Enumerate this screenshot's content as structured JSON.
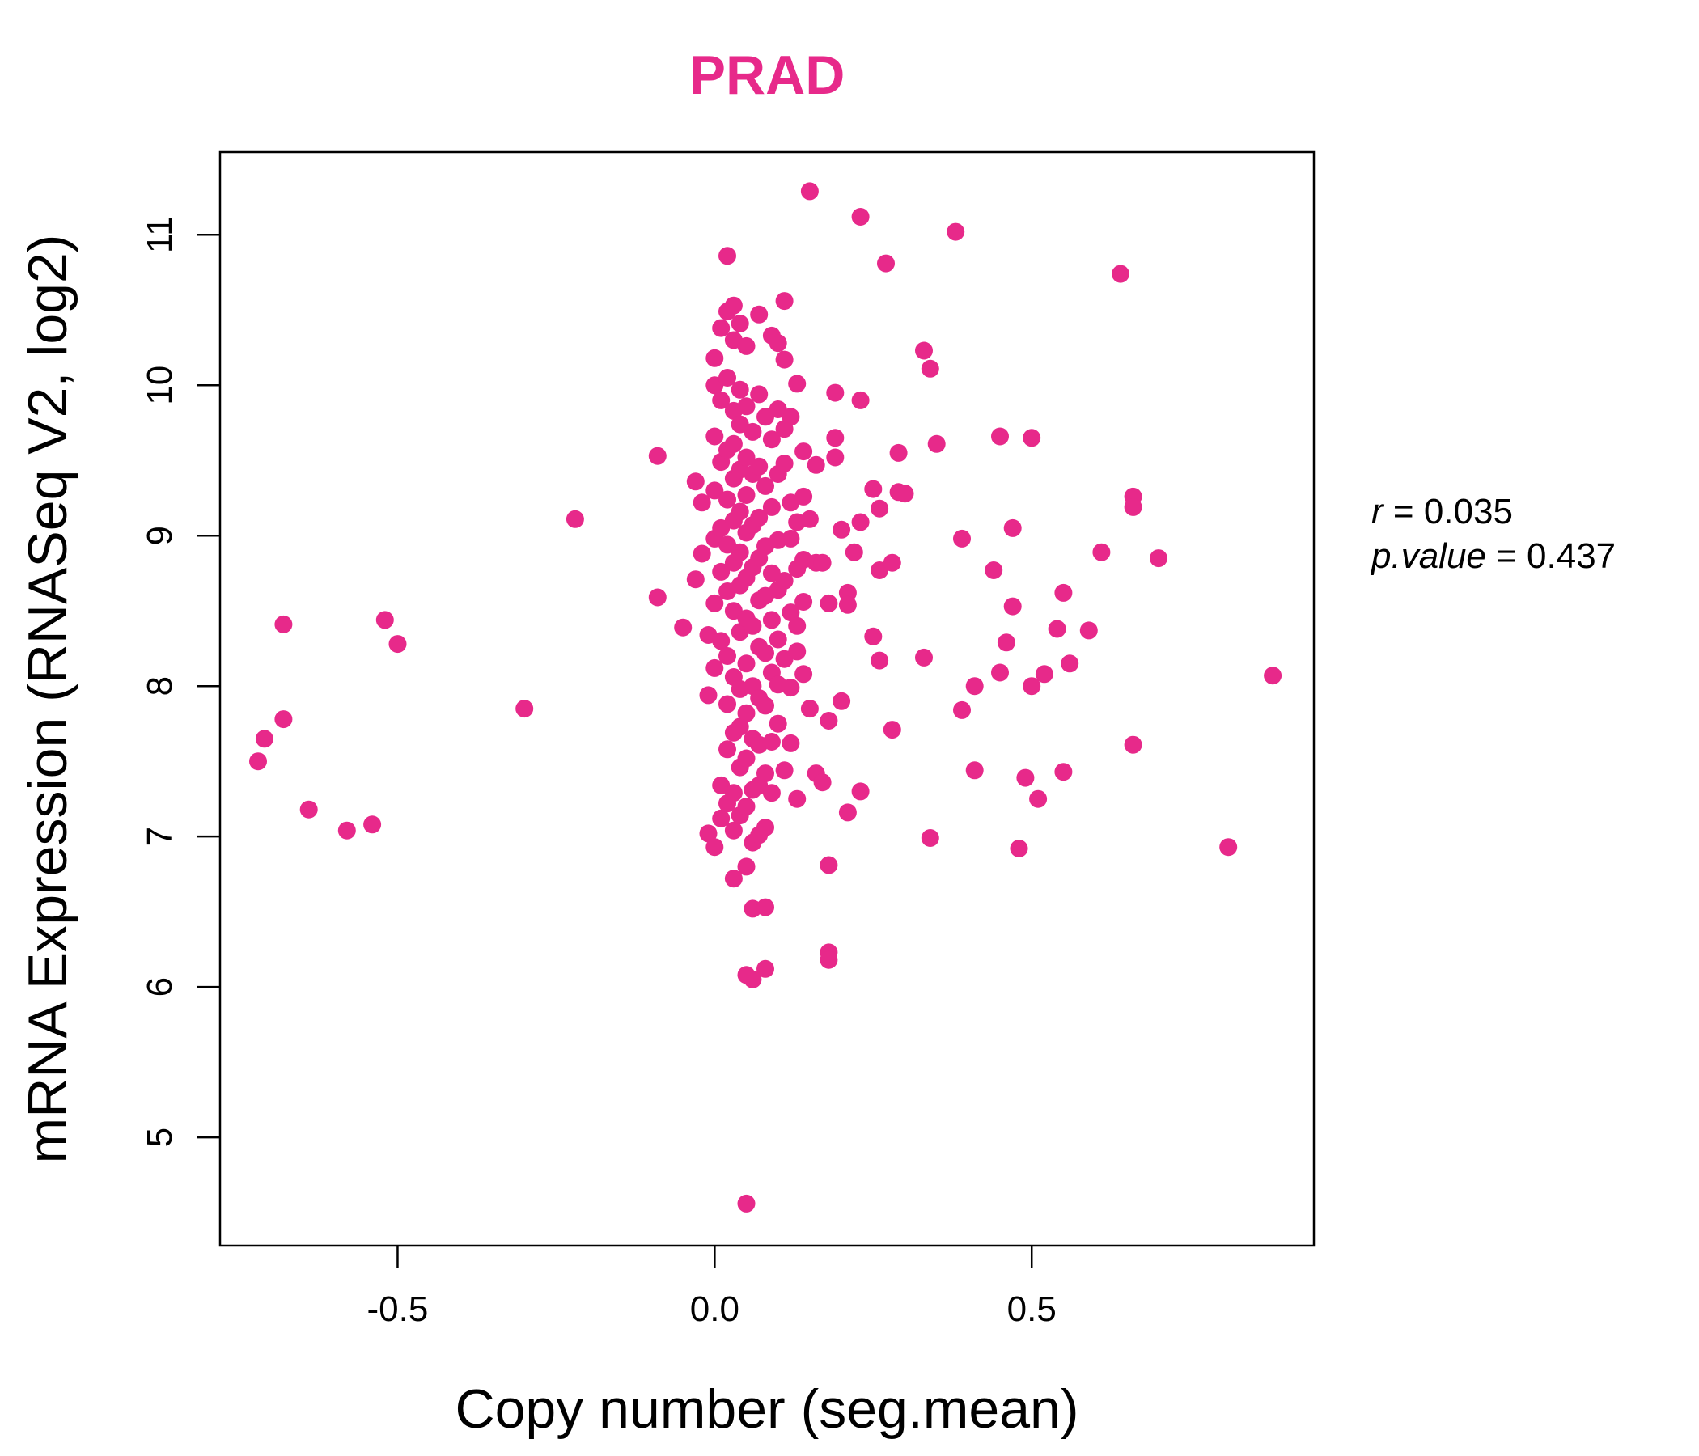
{
  "chart_data": {
    "type": "scatter",
    "title": "PRAD",
    "xlabel": "Copy number (seg.mean)",
    "ylabel": "mRNA Expression (RNASeq V2, log2)",
    "xlim": [
      -0.78,
      0.945
    ],
    "ylim": [
      4.28,
      11.55
    ],
    "xticks": [
      -0.5,
      0.0,
      0.5
    ],
    "xtick_labels": [
      "-0.5",
      "0.0",
      "0.5"
    ],
    "yticks": [
      5,
      6,
      7,
      8,
      9,
      10,
      11
    ],
    "ytick_labels": [
      "5",
      "6",
      "7",
      "8",
      "9",
      "10",
      "11"
    ],
    "grid": false,
    "legend": "none",
    "colors": {
      "points": "#e7298a",
      "title": "#e7298a",
      "axis": "#000000"
    },
    "stats": {
      "r_label": "r",
      "r_value": "0.035",
      "p_label": "p.value",
      "p_value": "0.437"
    },
    "points": [
      [
        -0.72,
        7.5
      ],
      [
        -0.71,
        7.65
      ],
      [
        -0.68,
        8.41
      ],
      [
        -0.68,
        7.78
      ],
      [
        -0.64,
        7.18
      ],
      [
        -0.58,
        7.04
      ],
      [
        -0.54,
        7.08
      ],
      [
        -0.52,
        8.44
      ],
      [
        -0.5,
        8.28
      ],
      [
        -0.3,
        7.85
      ],
      [
        -0.22,
        9.11
      ],
      [
        -0.09,
        9.53
      ],
      [
        -0.09,
        8.59
      ],
      [
        -0.05,
        8.39
      ],
      [
        -0.03,
        9.36
      ],
      [
        -0.03,
        8.71
      ],
      [
        -0.02,
        9.22
      ],
      [
        -0.02,
        8.88
      ],
      [
        -0.01,
        8.34
      ],
      [
        -0.01,
        7.94
      ],
      [
        -0.01,
        7.02
      ],
      [
        0.0,
        10.18
      ],
      [
        0.0,
        10.0
      ],
      [
        0.0,
        9.66
      ],
      [
        0.0,
        9.3
      ],
      [
        0.0,
        8.98
      ],
      [
        0.0,
        8.55
      ],
      [
        0.0,
        8.12
      ],
      [
        0.0,
        6.93
      ],
      [
        0.01,
        10.38
      ],
      [
        0.01,
        9.9
      ],
      [
        0.01,
        9.49
      ],
      [
        0.01,
        9.05
      ],
      [
        0.01,
        8.76
      ],
      [
        0.01,
        8.3
      ],
      [
        0.01,
        7.34
      ],
      [
        0.01,
        7.12
      ],
      [
        0.02,
        10.86
      ],
      [
        0.02,
        10.49
      ],
      [
        0.02,
        10.05
      ],
      [
        0.02,
        9.57
      ],
      [
        0.02,
        9.24
      ],
      [
        0.02,
        8.94
      ],
      [
        0.02,
        8.63
      ],
      [
        0.02,
        8.2
      ],
      [
        0.02,
        7.88
      ],
      [
        0.02,
        7.58
      ],
      [
        0.02,
        7.22
      ],
      [
        0.03,
        10.53
      ],
      [
        0.03,
        10.3
      ],
      [
        0.03,
        9.83
      ],
      [
        0.03,
        9.61
      ],
      [
        0.03,
        9.38
      ],
      [
        0.03,
        9.1
      ],
      [
        0.03,
        8.82
      ],
      [
        0.03,
        8.5
      ],
      [
        0.03,
        8.06
      ],
      [
        0.03,
        7.69
      ],
      [
        0.03,
        7.29
      ],
      [
        0.03,
        7.04
      ],
      [
        0.03,
        6.72
      ],
      [
        0.04,
        10.41
      ],
      [
        0.04,
        9.97
      ],
      [
        0.04,
        9.74
      ],
      [
        0.04,
        9.44
      ],
      [
        0.04,
        9.16
      ],
      [
        0.04,
        8.89
      ],
      [
        0.04,
        8.67
      ],
      [
        0.04,
        8.36
      ],
      [
        0.04,
        7.98
      ],
      [
        0.04,
        7.73
      ],
      [
        0.04,
        7.46
      ],
      [
        0.04,
        7.14
      ],
      [
        0.05,
        10.26
      ],
      [
        0.05,
        9.86
      ],
      [
        0.05,
        9.52
      ],
      [
        0.05,
        9.27
      ],
      [
        0.05,
        9.02
      ],
      [
        0.05,
        8.72
      ],
      [
        0.05,
        8.45
      ],
      [
        0.05,
        8.15
      ],
      [
        0.05,
        7.82
      ],
      [
        0.05,
        7.52
      ],
      [
        0.05,
        7.2
      ],
      [
        0.05,
        6.8
      ],
      [
        0.05,
        6.08
      ],
      [
        0.05,
        4.56
      ],
      [
        0.06,
        9.69
      ],
      [
        0.06,
        9.41
      ],
      [
        0.06,
        9.07
      ],
      [
        0.06,
        8.79
      ],
      [
        0.06,
        8.4
      ],
      [
        0.06,
        8.0
      ],
      [
        0.06,
        7.65
      ],
      [
        0.06,
        7.31
      ],
      [
        0.06,
        6.96
      ],
      [
        0.06,
        6.52
      ],
      [
        0.06,
        6.05
      ],
      [
        0.07,
        10.47
      ],
      [
        0.07,
        9.94
      ],
      [
        0.07,
        9.46
      ],
      [
        0.07,
        9.12
      ],
      [
        0.07,
        8.85
      ],
      [
        0.07,
        8.57
      ],
      [
        0.07,
        8.26
      ],
      [
        0.07,
        7.92
      ],
      [
        0.07,
        7.61
      ],
      [
        0.07,
        7.34
      ],
      [
        0.07,
        7.01
      ],
      [
        0.08,
        9.79
      ],
      [
        0.08,
        9.33
      ],
      [
        0.08,
        8.93
      ],
      [
        0.08,
        8.6
      ],
      [
        0.08,
        8.22
      ],
      [
        0.08,
        7.87
      ],
      [
        0.08,
        7.42
      ],
      [
        0.08,
        7.06
      ],
      [
        0.08,
        6.53
      ],
      [
        0.08,
        6.12
      ],
      [
        0.09,
        10.33
      ],
      [
        0.09,
        9.64
      ],
      [
        0.09,
        9.19
      ],
      [
        0.09,
        8.75
      ],
      [
        0.09,
        8.44
      ],
      [
        0.09,
        8.09
      ],
      [
        0.09,
        7.63
      ],
      [
        0.09,
        7.29
      ],
      [
        0.1,
        10.28
      ],
      [
        0.1,
        9.84
      ],
      [
        0.1,
        9.41
      ],
      [
        0.1,
        8.97
      ],
      [
        0.1,
        8.64
      ],
      [
        0.1,
        8.31
      ],
      [
        0.1,
        8.01
      ],
      [
        0.1,
        7.75
      ],
      [
        0.11,
        10.56
      ],
      [
        0.11,
        10.17
      ],
      [
        0.11,
        9.71
      ],
      [
        0.11,
        9.48
      ],
      [
        0.11,
        8.7
      ],
      [
        0.11,
        8.18
      ],
      [
        0.11,
        7.44
      ],
      [
        0.12,
        9.79
      ],
      [
        0.12,
        9.22
      ],
      [
        0.12,
        8.98
      ],
      [
        0.12,
        8.49
      ],
      [
        0.12,
        7.99
      ],
      [
        0.12,
        7.62
      ],
      [
        0.13,
        10.01
      ],
      [
        0.13,
        9.09
      ],
      [
        0.13,
        8.78
      ],
      [
        0.13,
        8.4
      ],
      [
        0.13,
        8.23
      ],
      [
        0.13,
        7.25
      ],
      [
        0.14,
        9.56
      ],
      [
        0.14,
        9.26
      ],
      [
        0.14,
        8.84
      ],
      [
        0.14,
        8.56
      ],
      [
        0.14,
        8.08
      ],
      [
        0.15,
        11.29
      ],
      [
        0.15,
        9.11
      ],
      [
        0.15,
        7.85
      ],
      [
        0.16,
        9.47
      ],
      [
        0.16,
        8.82
      ],
      [
        0.16,
        7.42
      ],
      [
        0.17,
        8.82
      ],
      [
        0.17,
        7.36
      ],
      [
        0.18,
        8.55
      ],
      [
        0.18,
        7.77
      ],
      [
        0.18,
        6.81
      ],
      [
        0.18,
        6.23
      ],
      [
        0.18,
        6.18
      ],
      [
        0.19,
        9.95
      ],
      [
        0.19,
        9.52
      ],
      [
        0.19,
        9.65
      ],
      [
        0.2,
        7.9
      ],
      [
        0.2,
        9.04
      ],
      [
        0.21,
        7.16
      ],
      [
        0.21,
        8.62
      ],
      [
        0.21,
        8.54
      ],
      [
        0.22,
        8.89
      ],
      [
        0.23,
        9.9
      ],
      [
        0.23,
        11.12
      ],
      [
        0.23,
        9.09
      ],
      [
        0.23,
        7.3
      ],
      [
        0.25,
        8.33
      ],
      [
        0.25,
        9.31
      ],
      [
        0.26,
        8.17
      ],
      [
        0.26,
        8.77
      ],
      [
        0.26,
        9.18
      ],
      [
        0.27,
        10.81
      ],
      [
        0.28,
        8.82
      ],
      [
        0.28,
        7.71
      ],
      [
        0.29,
        9.29
      ],
      [
        0.29,
        9.55
      ],
      [
        0.3,
        9.28
      ],
      [
        0.33,
        10.23
      ],
      [
        0.33,
        8.19
      ],
      [
        0.34,
        10.11
      ],
      [
        0.34,
        6.99
      ],
      [
        0.35,
        9.61
      ],
      [
        0.38,
        11.02
      ],
      [
        0.39,
        8.98
      ],
      [
        0.39,
        7.84
      ],
      [
        0.41,
        8.0
      ],
      [
        0.41,
        7.44
      ],
      [
        0.44,
        8.77
      ],
      [
        0.45,
        8.09
      ],
      [
        0.45,
        9.66
      ],
      [
        0.46,
        8.29
      ],
      [
        0.47,
        8.53
      ],
      [
        0.47,
        9.05
      ],
      [
        0.48,
        6.92
      ],
      [
        0.49,
        7.39
      ],
      [
        0.5,
        9.65
      ],
      [
        0.5,
        8.0
      ],
      [
        0.51,
        7.25
      ],
      [
        0.52,
        8.08
      ],
      [
        0.54,
        8.38
      ],
      [
        0.55,
        8.62
      ],
      [
        0.55,
        7.43
      ],
      [
        0.56,
        8.15
      ],
      [
        0.59,
        8.37
      ],
      [
        0.61,
        8.89
      ],
      [
        0.64,
        10.74
      ],
      [
        0.66,
        9.26
      ],
      [
        0.66,
        9.19
      ],
      [
        0.66,
        7.61
      ],
      [
        0.7,
        8.85
      ],
      [
        0.81,
        6.93
      ],
      [
        0.88,
        8.07
      ]
    ]
  }
}
